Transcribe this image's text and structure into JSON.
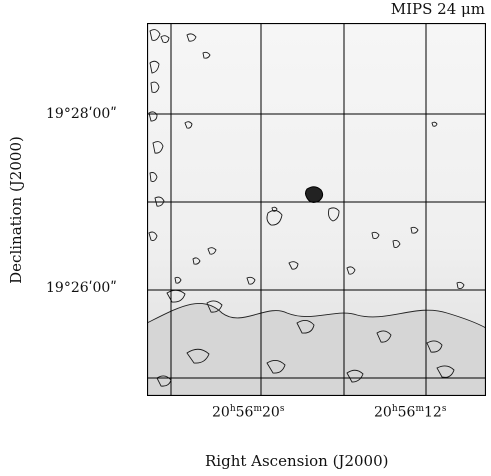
{
  "panel_title": "MIPS 24 μm",
  "axes": {
    "xlabel": "Right Ascension (J2000)",
    "ylabel": "Declination (J2000)",
    "ra_ticks": [
      {
        "h": "20",
        "m": "56",
        "s": "20"
      },
      {
        "h": "20",
        "m": "56",
        "s": "12"
      }
    ],
    "dec_ticks": [
      "19°28ʹ00ʺ",
      "19°26ʹ00ʺ"
    ],
    "ra_unit_marks": {
      "h": "h",
      "m": "m",
      "s": "s"
    }
  },
  "image": {
    "type": "contour map",
    "line_color": "#111111",
    "fill_color": "#d9d9d9",
    "background": "#f4f4f4"
  }
}
